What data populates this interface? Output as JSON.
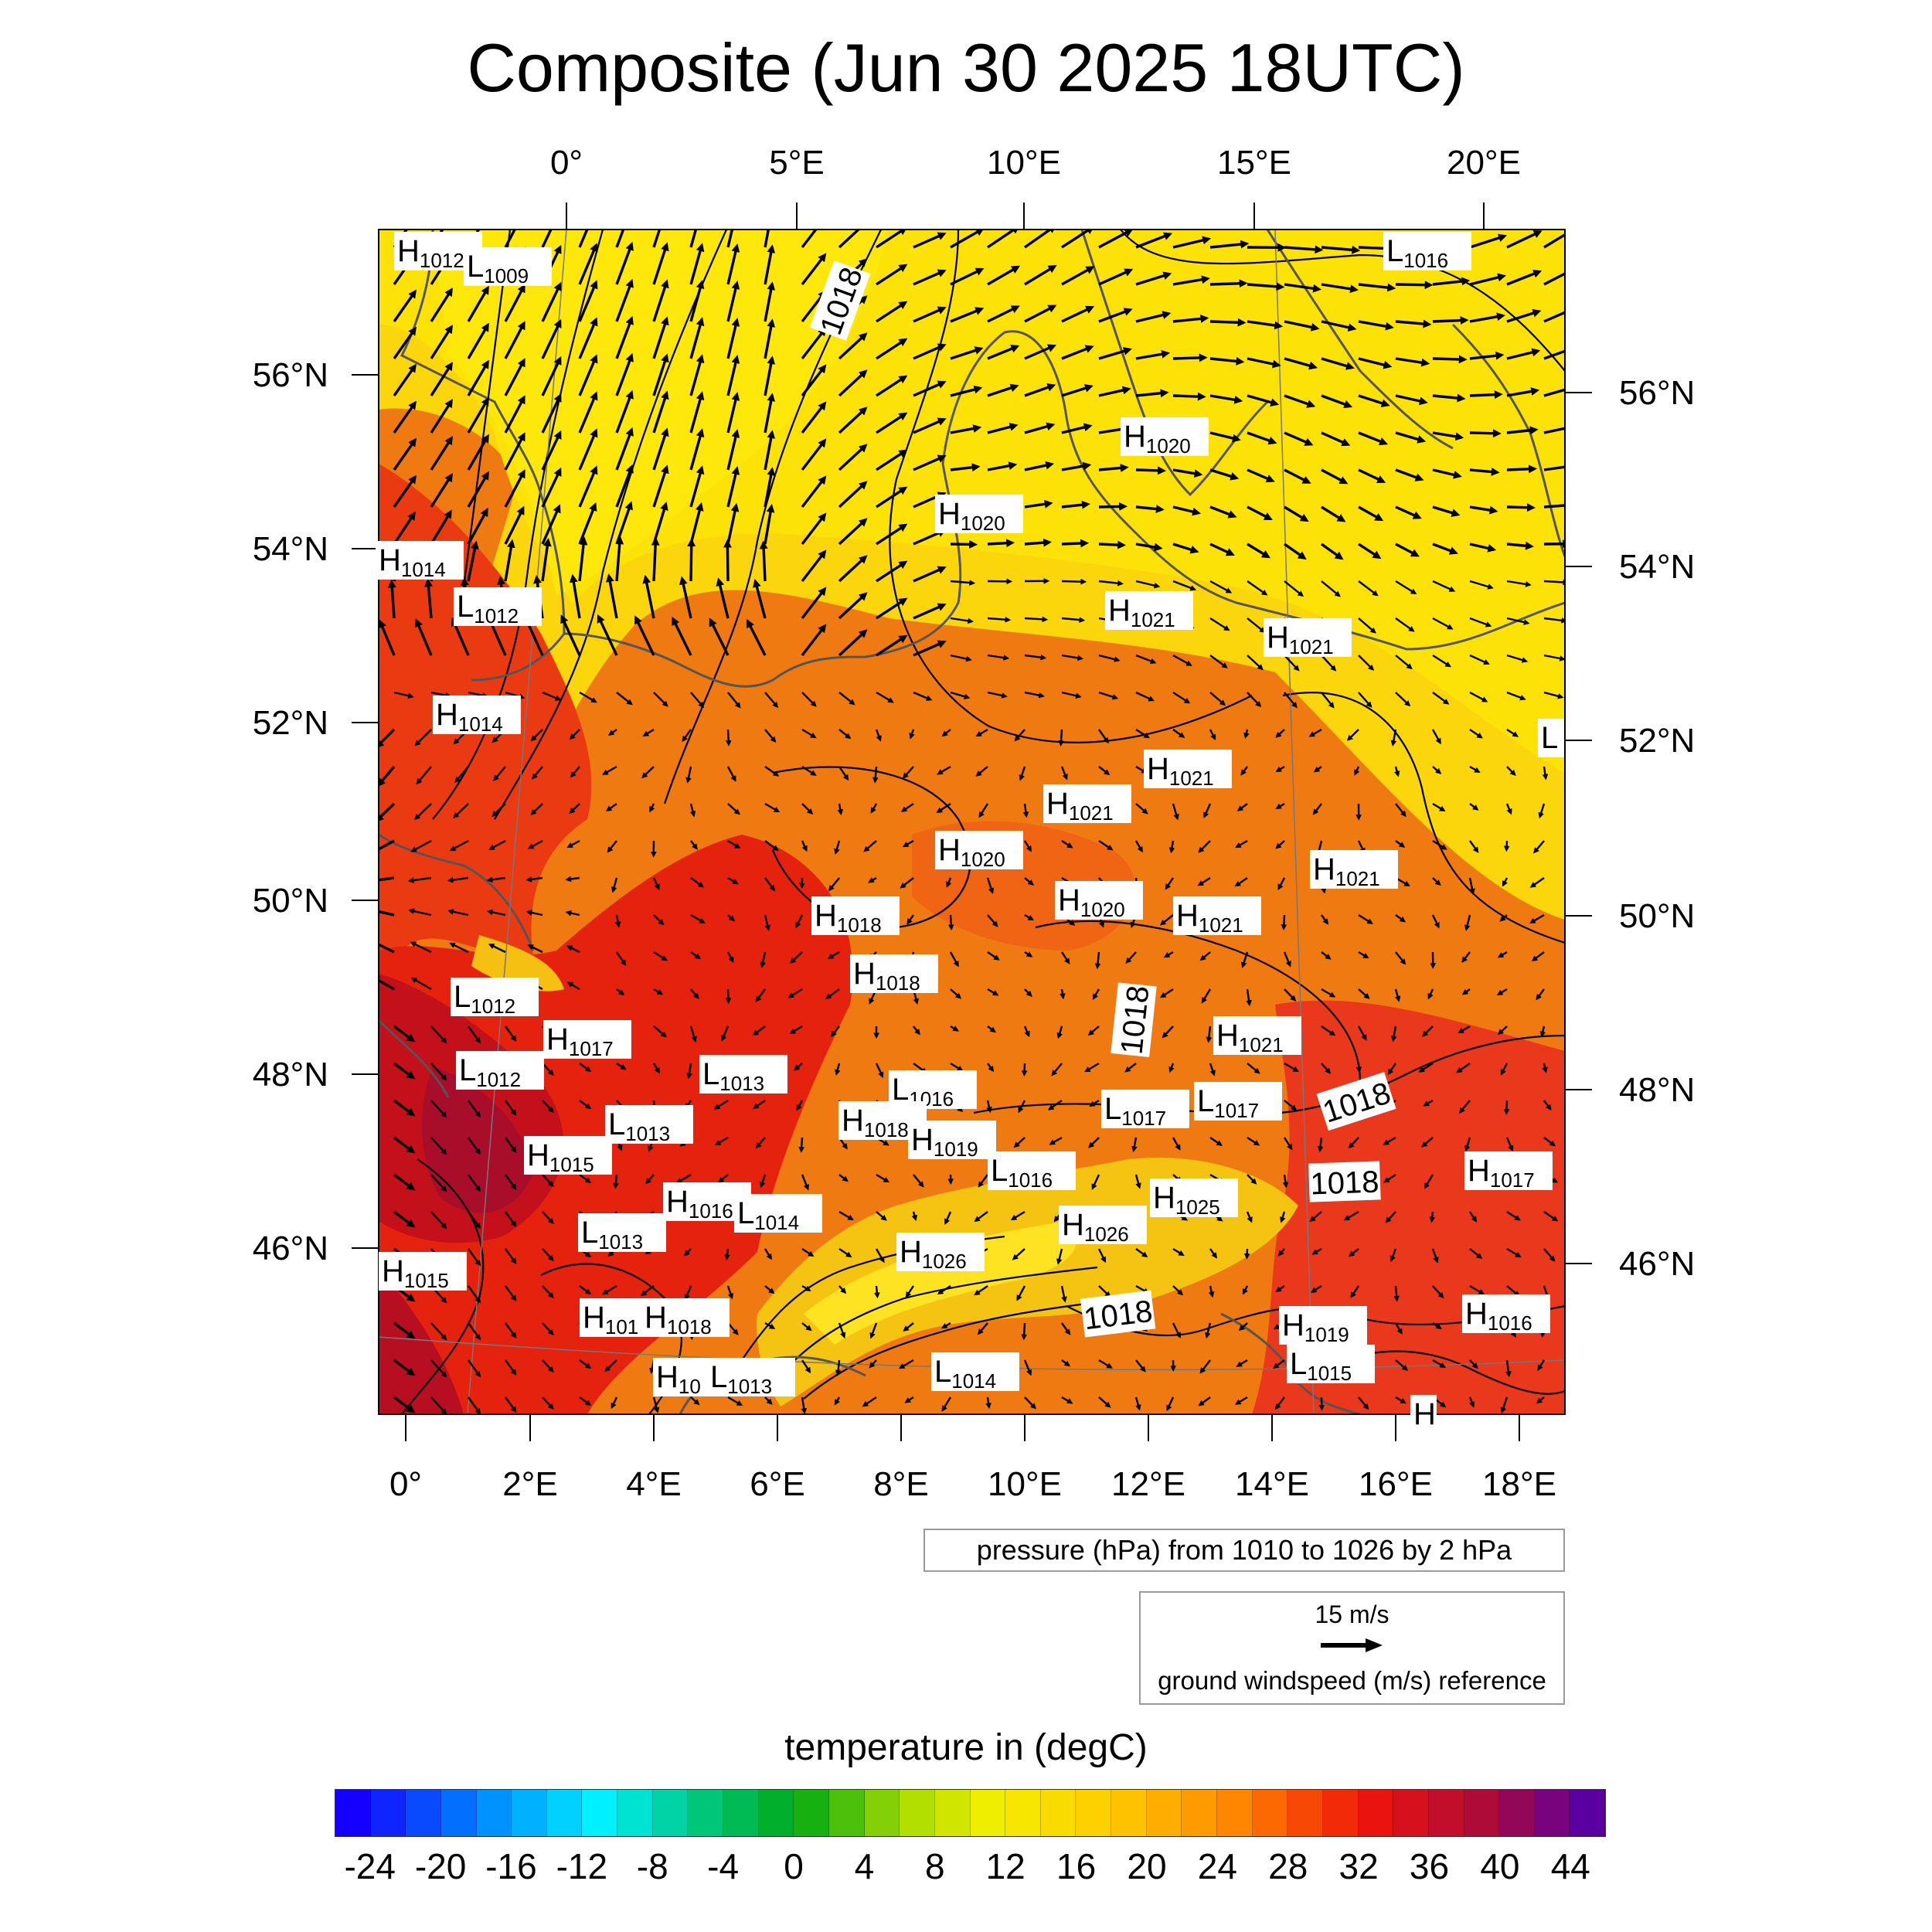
{
  "title": "Composite (Jun 30 2025 18UTC)",
  "map": {
    "top_lon_labels": [
      "0°",
      "5°E",
      "10°E",
      "15°E",
      "20°E"
    ],
    "bottom_lon_labels": [
      "0°",
      "2°E",
      "4°E",
      "6°E",
      "8°E",
      "10°E",
      "12°E",
      "14°E",
      "16°E",
      "18°E"
    ],
    "left_lat_labels": [
      "56°N",
      "54°N",
      "52°N",
      "50°N",
      "48°N",
      "46°N"
    ],
    "right_lat_labels": [
      "56°N",
      "54°N",
      "52°N",
      "50°N",
      "48°N",
      "46°N"
    ],
    "pressure_centers": [
      {
        "type": "H",
        "value": "1012"
      },
      {
        "type": "L",
        "value": "1009"
      },
      {
        "type": "L",
        "value": "1016"
      },
      {
        "type": "H",
        "value": "1020"
      },
      {
        "type": "H",
        "value": "1020"
      },
      {
        "type": "H",
        "value": "1014"
      },
      {
        "type": "L",
        "value": "1012"
      },
      {
        "type": "H",
        "value": "1021"
      },
      {
        "type": "H",
        "value": "1021"
      },
      {
        "type": "H",
        "value": "1014"
      },
      {
        "type": "L",
        "value": ""
      },
      {
        "type": "H",
        "value": "1021"
      },
      {
        "type": "H",
        "value": "1021"
      },
      {
        "type": "H",
        "value": "1020"
      },
      {
        "type": "H",
        "value": "1021"
      },
      {
        "type": "H",
        "value": "1018"
      },
      {
        "type": "H",
        "value": "1020"
      },
      {
        "type": "H",
        "value": "1021"
      },
      {
        "type": "H",
        "value": "1018"
      },
      {
        "type": "L",
        "value": "1012"
      },
      {
        "type": "H",
        "value": "1017"
      },
      {
        "type": "H",
        "value": "1021"
      },
      {
        "type": "L",
        "value": "1012"
      },
      {
        "type": "L",
        "value": "1013"
      },
      {
        "type": "L",
        "value": "1016"
      },
      {
        "type": "L",
        "value": "1017"
      },
      {
        "type": "L",
        "value": "1017"
      },
      {
        "type": "L",
        "value": "1013"
      },
      {
        "type": "H",
        "value": "1018"
      },
      {
        "type": "H",
        "value": "1019"
      },
      {
        "type": "H",
        "value": "1015"
      },
      {
        "type": "L",
        "value": "1016"
      },
      {
        "type": "H",
        "value": "1017"
      },
      {
        "type": "H",
        "value": "1016"
      },
      {
        "type": "L",
        "value": "1014"
      },
      {
        "type": "H",
        "value": "1025"
      },
      {
        "type": "L",
        "value": "1013"
      },
      {
        "type": "H",
        "value": "1026"
      },
      {
        "type": "H",
        "value": "1026"
      },
      {
        "type": "H",
        "value": "1015"
      },
      {
        "type": "H",
        "value": "101"
      },
      {
        "type": "H",
        "value": "1018"
      },
      {
        "type": "H",
        "value": "1019"
      },
      {
        "type": "H",
        "value": "1016"
      },
      {
        "type": "L",
        "value": "1015"
      },
      {
        "type": "H",
        "value": "10"
      },
      {
        "type": "L",
        "value": "1013"
      },
      {
        "type": "L",
        "value": "1014"
      },
      {
        "type": "H",
        "value": ""
      }
    ],
    "isobar_labels": [
      "1018",
      "1018",
      "1018",
      "1018",
      "1018"
    ],
    "contour_interval_hpa": 2,
    "pressure_range_hpa": [
      1010,
      1026
    ]
  },
  "pressure_legend": "pressure (hPa) from 1010 to 1026 by 2 hPa",
  "wind_legend": {
    "reference_value": "15 m/s",
    "caption": "ground windspeed (m/s) reference",
    "reference_speed_ms": 15
  },
  "colorbar": {
    "title": "temperature in (degC)",
    "min": -26,
    "max": 46,
    "step": 2,
    "tick_labels": [
      "-24",
      "-20",
      "-16",
      "-12",
      "-8",
      "-4",
      "0",
      "4",
      "8",
      "12",
      "16",
      "20",
      "24",
      "28",
      "32",
      "36",
      "40",
      "44"
    ],
    "tick_values": [
      -24,
      -20,
      -16,
      -12,
      -8,
      -4,
      0,
      4,
      8,
      12,
      16,
      20,
      24,
      28,
      32,
      36,
      40,
      44
    ]
  }
}
